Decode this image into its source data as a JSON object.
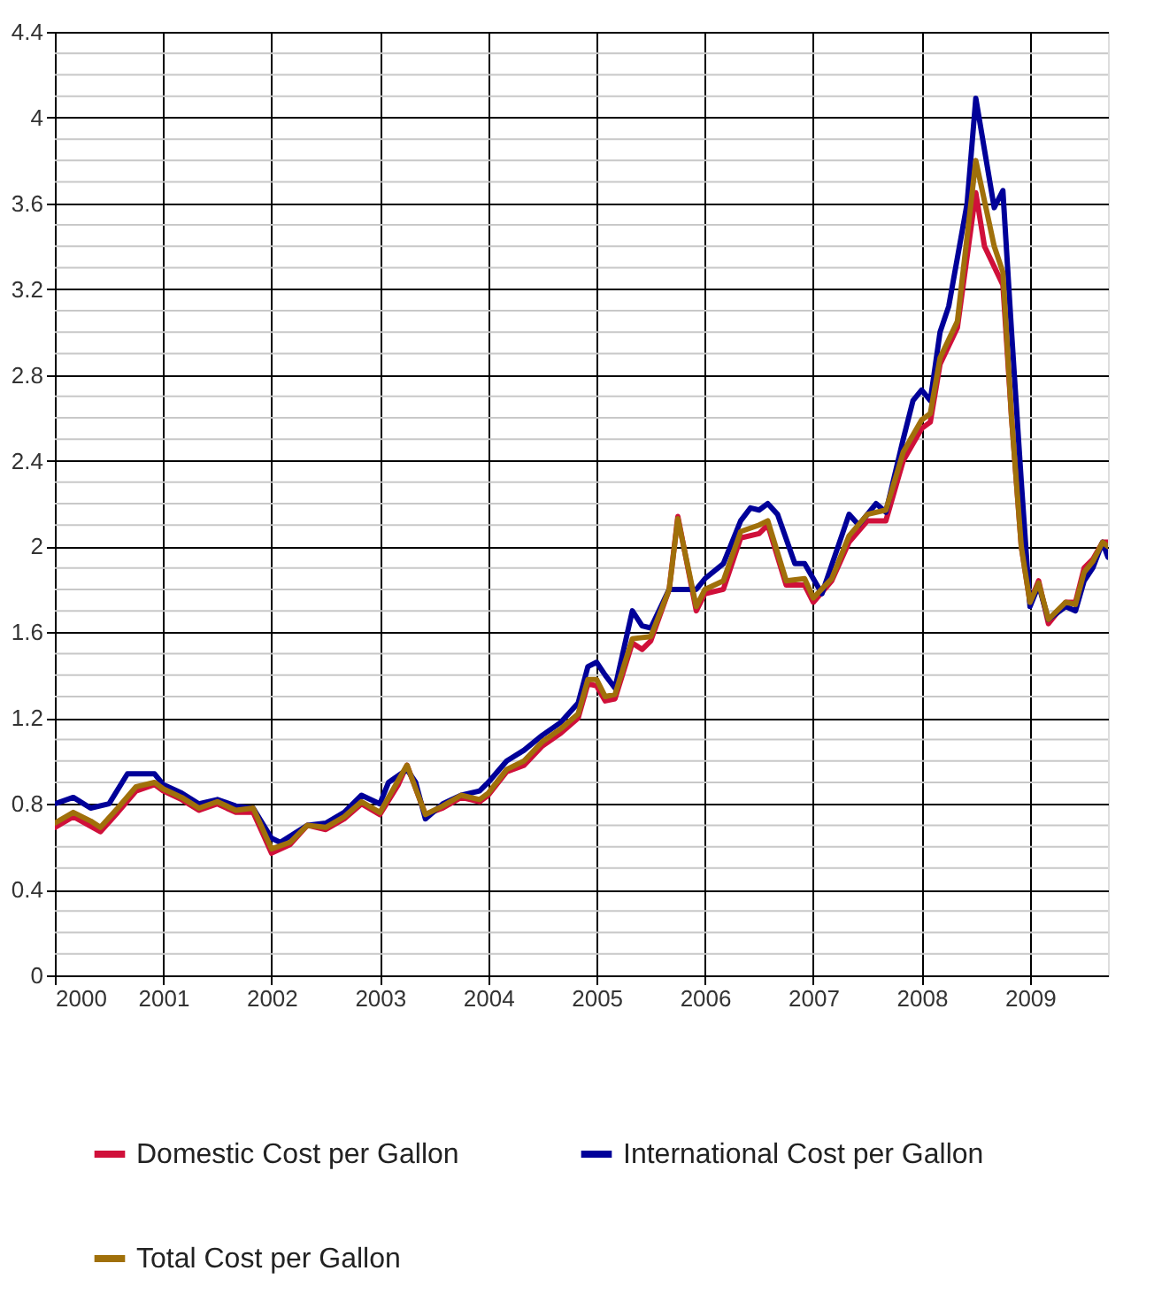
{
  "chart_data": {
    "type": "line",
    "xlim": [
      2000,
      2009.72
    ],
    "xticks": [
      2000,
      2001,
      2002,
      2003,
      2004,
      2005,
      2006,
      2007,
      2008,
      2009
    ],
    "ylim": [
      0,
      4.4
    ],
    "yticks": [
      0,
      0.4,
      0.8,
      1.2,
      1.6,
      2,
      2.4,
      2.8,
      3.2,
      3.6,
      4,
      4.4
    ],
    "grid": true,
    "legend": "bottom",
    "line_style": "solid",
    "marker": "none",
    "series": [
      {
        "name": "Domestic Cost per Gallon",
        "color": "#d0103a",
        "x": [
          2000.0,
          2000.17,
          2000.42,
          2000.58,
          2000.75,
          2000.92,
          2001.0,
          2001.17,
          2001.33,
          2001.5,
          2001.67,
          2001.83,
          2001.92,
          2002.0,
          2002.17,
          2002.33,
          2002.5,
          2002.67,
          2002.83,
          2003.0,
          2003.17,
          2003.25,
          2003.42,
          2003.58,
          2003.75,
          2003.92,
          2004.0,
          2004.17,
          2004.33,
          2004.5,
          2004.67,
          2004.83,
          2004.92,
          2005.0,
          2005.08,
          2005.17,
          2005.33,
          2005.42,
          2005.5,
          2005.67,
          2005.75,
          2005.92,
          2006.0,
          2006.17,
          2006.33,
          2006.5,
          2006.58,
          2006.75,
          2006.92,
          2007.0,
          2007.17,
          2007.33,
          2007.5,
          2007.67,
          2007.83,
          2008.0,
          2008.08,
          2008.17,
          2008.33,
          2008.5,
          2008.58,
          2008.75,
          2008.83,
          2008.92,
          2009.0,
          2009.08,
          2009.17,
          2009.33,
          2009.42,
          2009.5,
          2009.58,
          2009.67,
          2009.72
        ],
        "values": [
          0.69,
          0.74,
          0.67,
          0.76,
          0.86,
          0.89,
          0.86,
          0.82,
          0.77,
          0.8,
          0.76,
          0.76,
          0.66,
          0.57,
          0.61,
          0.7,
          0.68,
          0.73,
          0.8,
          0.75,
          0.89,
          0.98,
          0.75,
          0.78,
          0.83,
          0.81,
          0.84,
          0.95,
          0.98,
          1.07,
          1.13,
          1.2,
          1.36,
          1.35,
          1.28,
          1.29,
          1.55,
          1.52,
          1.56,
          1.8,
          2.14,
          1.7,
          1.78,
          1.8,
          2.04,
          2.06,
          2.1,
          1.82,
          1.82,
          1.74,
          1.84,
          2.02,
          2.12,
          2.12,
          2.4,
          2.55,
          2.58,
          2.85,
          3.02,
          3.65,
          3.4,
          3.22,
          2.6,
          2.0,
          1.74,
          1.84,
          1.64,
          1.74,
          1.74,
          1.9,
          1.94,
          2.02,
          2.02
        ]
      },
      {
        "name": "International Cost per Gallon",
        "color": "#000099",
        "x": [
          2000.0,
          2000.17,
          2000.33,
          2000.5,
          2000.67,
          2000.92,
          2001.0,
          2001.17,
          2001.33,
          2001.5,
          2001.67,
          2001.83,
          2002.0,
          2002.08,
          2002.33,
          2002.5,
          2002.67,
          2002.83,
          2003.0,
          2003.08,
          2003.25,
          2003.33,
          2003.42,
          2003.58,
          2003.75,
          2003.92,
          2004.0,
          2004.17,
          2004.33,
          2004.5,
          2004.67,
          2004.83,
          2004.92,
          2005.0,
          2005.08,
          2005.17,
          2005.33,
          2005.42,
          2005.5,
          2005.67,
          2005.75,
          2005.92,
          2006.0,
          2006.17,
          2006.33,
          2006.42,
          2006.5,
          2006.58,
          2006.67,
          2006.83,
          2006.92,
          2007.08,
          2007.33,
          2007.42,
          2007.58,
          2007.67,
          2007.83,
          2007.92,
          2008.0,
          2008.08,
          2008.17,
          2008.25,
          2008.42,
          2008.5,
          2008.67,
          2008.75,
          2008.83,
          2008.92,
          2009.0,
          2009.08,
          2009.17,
          2009.33,
          2009.42,
          2009.5,
          2009.58,
          2009.67,
          2009.72
        ],
        "values": [
          0.8,
          0.83,
          0.78,
          0.8,
          0.94,
          0.94,
          0.89,
          0.85,
          0.8,
          0.82,
          0.79,
          0.78,
          0.64,
          0.62,
          0.7,
          0.71,
          0.76,
          0.84,
          0.8,
          0.9,
          0.96,
          0.9,
          0.73,
          0.8,
          0.84,
          0.86,
          0.9,
          1.0,
          1.05,
          1.12,
          1.18,
          1.27,
          1.44,
          1.46,
          1.4,
          1.34,
          1.7,
          1.63,
          1.62,
          1.8,
          null,
          1.8,
          1.85,
          1.92,
          2.12,
          2.18,
          2.17,
          2.2,
          2.15,
          1.92,
          1.92,
          1.78,
          2.15,
          2.1,
          2.2,
          2.16,
          2.5,
          2.68,
          2.73,
          2.68,
          3.0,
          3.12,
          3.6,
          4.09,
          3.58,
          3.66,
          3.0,
          2.3,
          1.72,
          1.82,
          1.66,
          1.72,
          1.7,
          1.84,
          1.9,
          2.02,
          1.95
        ]
      },
      {
        "name": "Total Cost per Gallon",
        "color": "#a0700a",
        "x": [
          2000.0,
          2000.17,
          2000.33,
          2000.42,
          2000.58,
          2000.75,
          2000.92,
          2001.0,
          2001.17,
          2001.33,
          2001.5,
          2001.67,
          2001.83,
          2001.92,
          2002.0,
          2002.17,
          2002.33,
          2002.5,
          2002.67,
          2002.83,
          2003.0,
          2003.17,
          2003.25,
          2003.42,
          2003.58,
          2003.75,
          2003.92,
          2004.0,
          2004.17,
          2004.33,
          2004.5,
          2004.67,
          2004.83,
          2004.92,
          2005.0,
          2005.08,
          2005.17,
          2005.33,
          2005.5,
          2005.67,
          2005.75,
          2005.92,
          2006.0,
          2006.17,
          2006.33,
          2006.5,
          2006.58,
          2006.75,
          2006.92,
          2007.0,
          2007.17,
          2007.33,
          2007.5,
          2007.67,
          2007.83,
          2008.0,
          2008.08,
          2008.17,
          2008.33,
          2008.5,
          2008.67,
          2008.75,
          2008.83,
          2008.92,
          2009.0,
          2009.08,
          2009.17,
          2009.33,
          2009.42,
          2009.5,
          2009.58,
          2009.67,
          2009.72
        ],
        "values": [
          0.71,
          0.76,
          0.72,
          0.69,
          0.78,
          0.88,
          0.9,
          0.87,
          0.83,
          0.78,
          0.81,
          0.77,
          0.78,
          0.68,
          0.59,
          0.62,
          0.7,
          0.69,
          0.74,
          0.81,
          0.76,
          0.91,
          0.98,
          0.75,
          0.79,
          0.84,
          0.82,
          0.85,
          0.96,
          1.0,
          1.09,
          1.15,
          1.22,
          1.38,
          1.38,
          1.3,
          1.31,
          1.57,
          1.58,
          1.8,
          2.13,
          1.72,
          1.8,
          1.84,
          2.07,
          2.1,
          2.12,
          1.84,
          1.85,
          1.76,
          1.85,
          2.05,
          2.15,
          2.17,
          2.44,
          2.59,
          2.62,
          2.88,
          3.05,
          3.8,
          3.4,
          3.28,
          2.6,
          2.0,
          1.74,
          1.83,
          1.66,
          1.74,
          1.73,
          1.88,
          1.93,
          2.02,
          2.0
        ]
      }
    ]
  }
}
